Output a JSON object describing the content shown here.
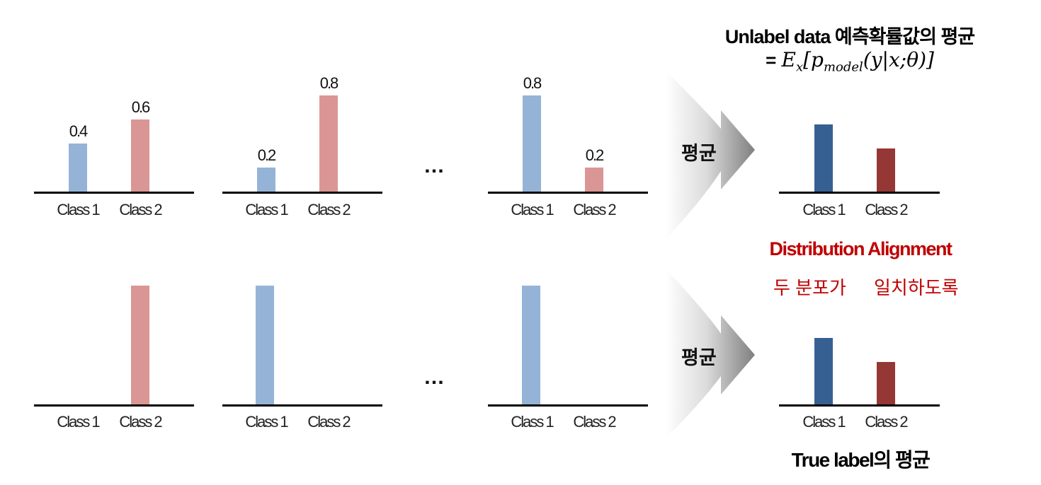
{
  "top_title": {
    "line1": "Unlabel data 예측확률값의 평균",
    "eq_prefix": "= ",
    "formula": "E_x[p_model(y|x;θ)]"
  },
  "arrow_labels": [
    "평균",
    "평균"
  ],
  "ellipsis": "…",
  "alignment": {
    "title": "Distribution Alignment",
    "left": "두 분포가",
    "right": "일치하도록"
  },
  "bottom_title": "True label의 평균",
  "colors": {
    "class1_light": "#95b3d7",
    "class2_light": "#da9694",
    "class1_dark": "#366092",
    "class2_dark": "#953735",
    "alignment_red": "#c00000"
  },
  "chart_data": [
    {
      "type": "bar",
      "categories": [
        "Class 1",
        "Class 2"
      ],
      "values": [
        0.4,
        0.6
      ],
      "data_labels": [
        "0.4",
        "0.6"
      ]
    },
    {
      "type": "bar",
      "categories": [
        "Class 1",
        "Class 2"
      ],
      "values": [
        0.2,
        0.8
      ],
      "data_labels": [
        "0.2",
        "0.8"
      ]
    },
    {
      "type": "bar",
      "categories": [
        "Class 1",
        "Class 2"
      ],
      "values": [
        0.8,
        0.2
      ],
      "data_labels": [
        "0.8",
        "0.2"
      ]
    },
    {
      "type": "bar",
      "categories": [
        "Class 1",
        "Class 2"
      ],
      "values": [
        0,
        1
      ]
    },
    {
      "type": "bar",
      "categories": [
        "Class 1",
        "Class 2"
      ],
      "values": [
        1,
        0
      ]
    },
    {
      "type": "bar",
      "categories": [
        "Class 1",
        "Class 2"
      ],
      "values": [
        1,
        0
      ]
    },
    {
      "type": "bar",
      "categories": [
        "Class 1",
        "Class 2"
      ],
      "values": [
        0.56,
        0.36
      ]
    },
    {
      "type": "bar",
      "categories": [
        "Class 1",
        "Class 2"
      ],
      "values": [
        0.56,
        0.36
      ]
    }
  ]
}
